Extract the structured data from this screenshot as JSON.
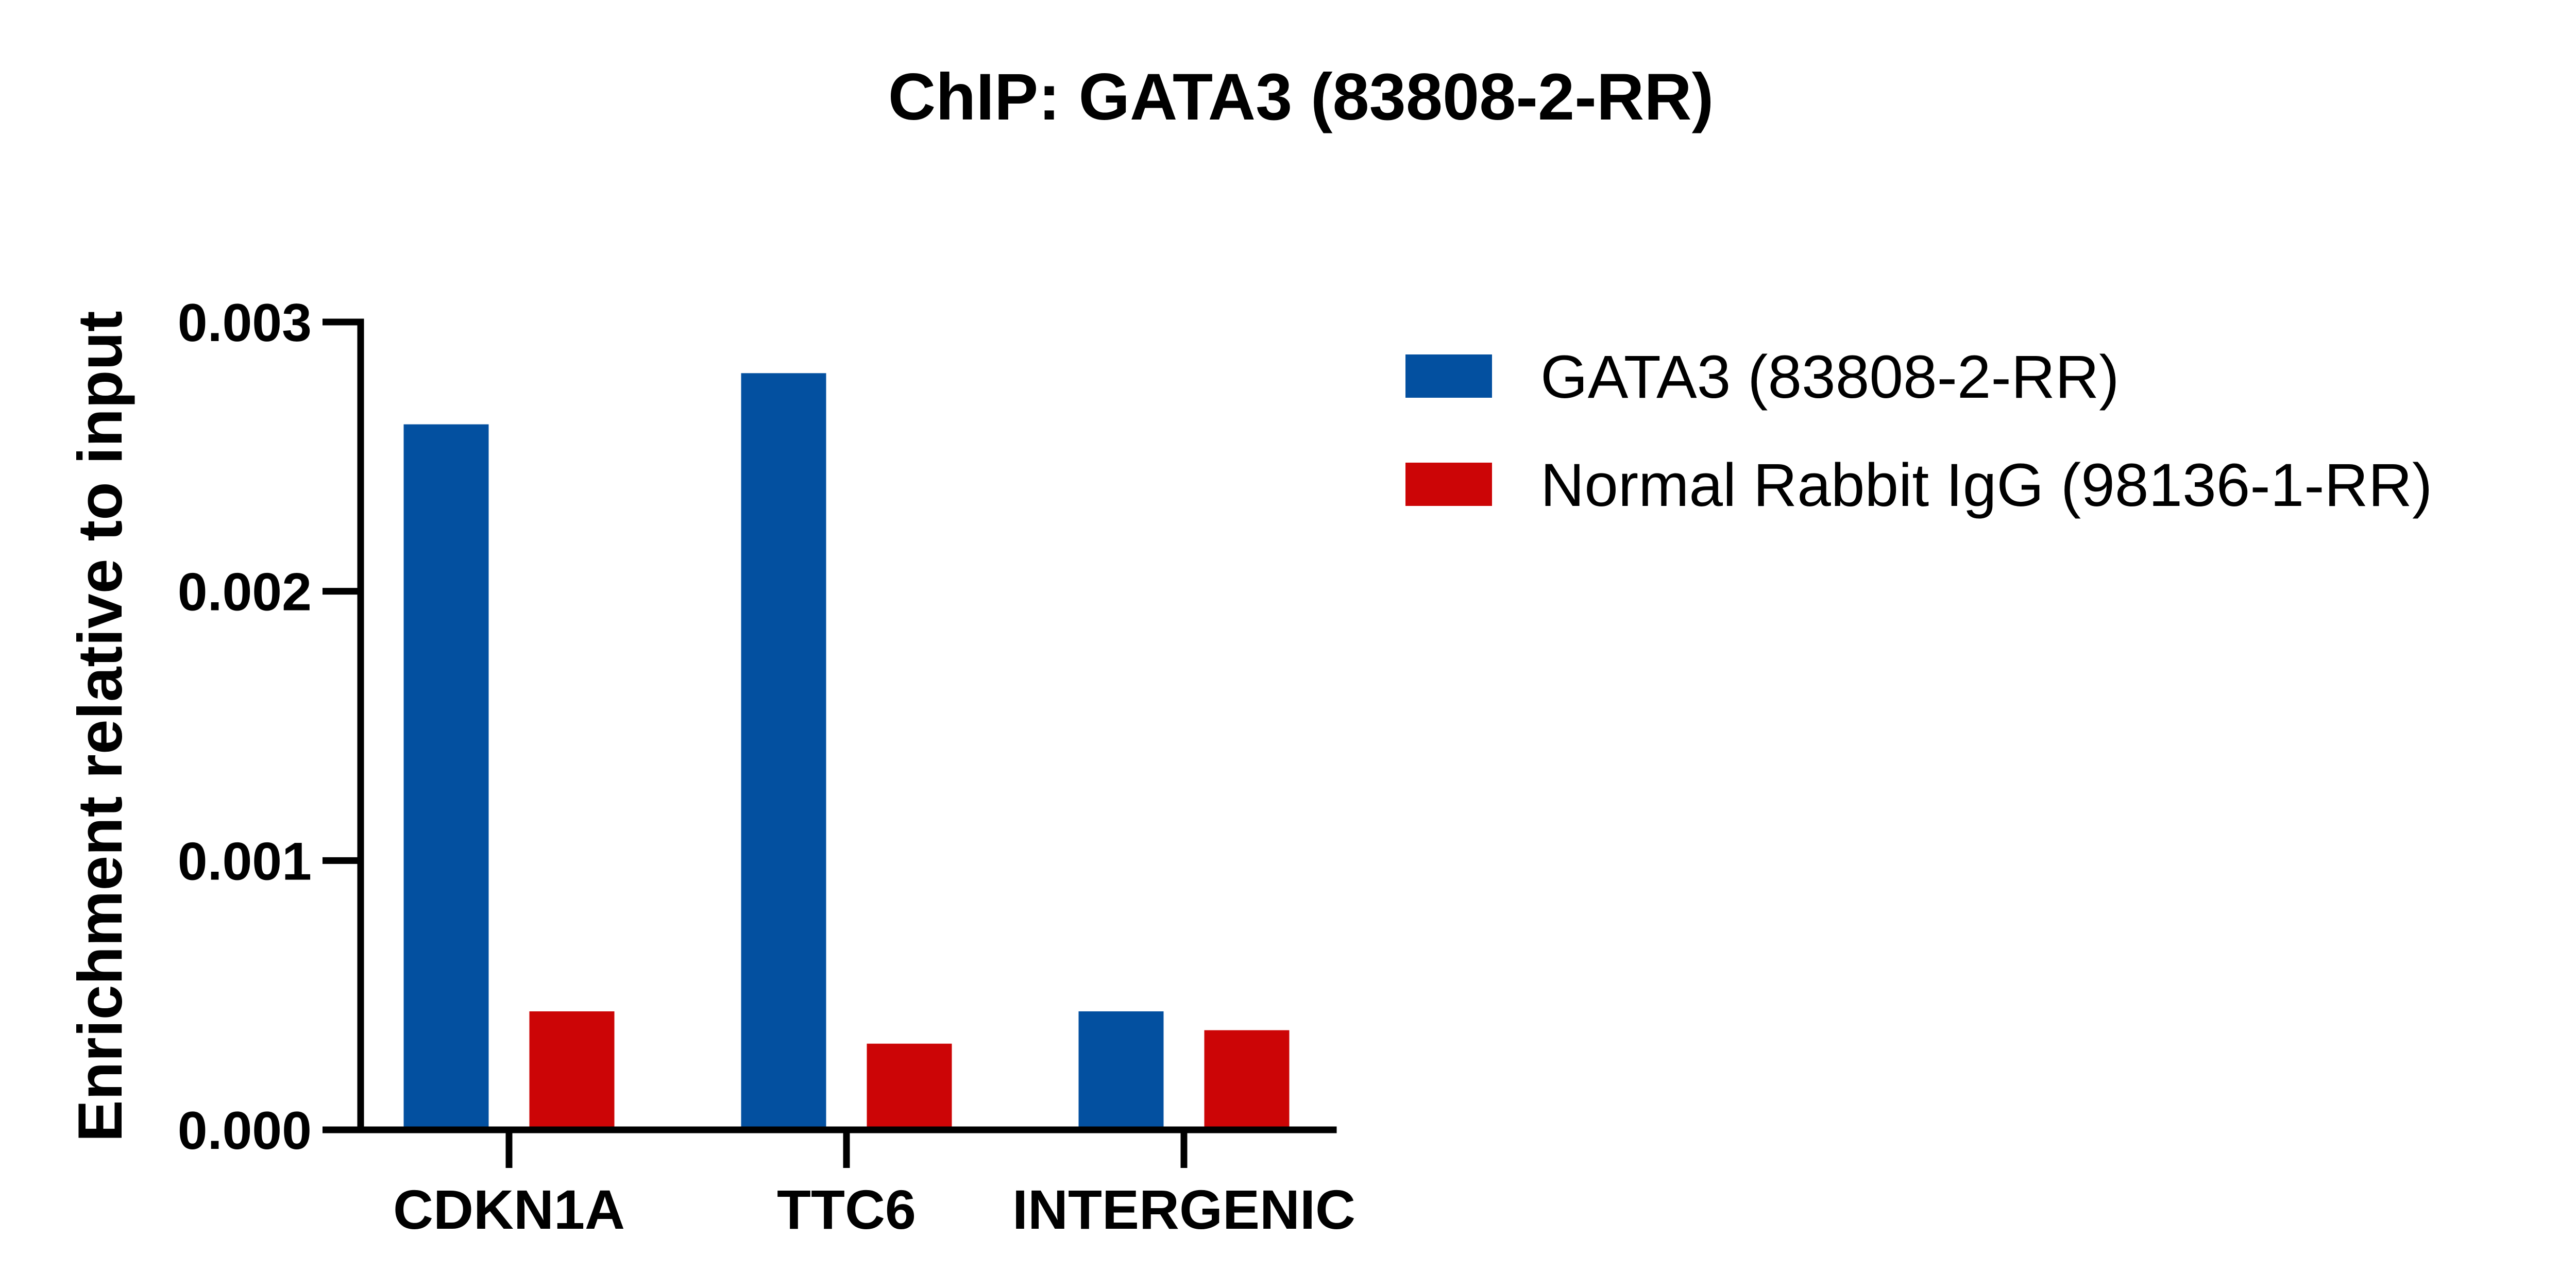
{
  "chart_data": {
    "type": "bar",
    "title": "ChIP: GATA3 (83808-2-RR)",
    "xlabel": "",
    "ylabel": "Enrichment relative to input",
    "categories": [
      "CDKN1A",
      "TTC6",
      "INTERGENIC"
    ],
    "series": [
      {
        "name": "GATA3 (83808-2-RR)",
        "color": "#0350A0",
        "values": [
          0.00262,
          0.00281,
          0.00044
        ]
      },
      {
        "name": "Normal Rabbit IgG (98136-1-RR)",
        "color": "#CC0506",
        "values": [
          0.00044,
          0.00032,
          0.00037
        ]
      }
    ],
    "ylim": [
      0,
      0.003
    ],
    "yticks": [
      0,
      0.001,
      0.002,
      0.003
    ],
    "ytick_labels": [
      "0.000",
      "0.001",
      "0.002",
      "0.003"
    ],
    "grid": false,
    "legend_position": "right"
  }
}
